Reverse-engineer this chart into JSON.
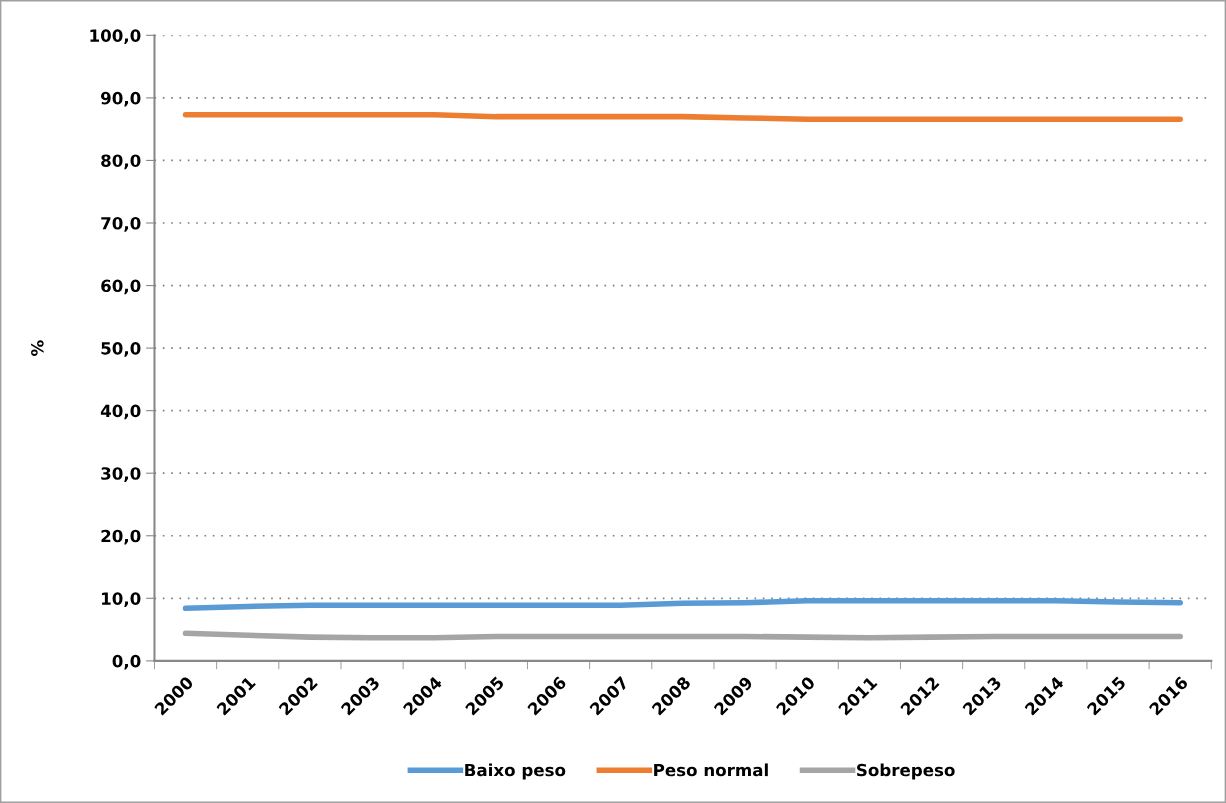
{
  "chart_data": {
    "type": "line",
    "ylabel": "%",
    "categories": [
      "2000",
      "2001",
      "2002",
      "2003",
      "2004",
      "2005",
      "2006",
      "2007",
      "2008",
      "2009",
      "2010",
      "2011",
      "2012",
      "2013",
      "2014",
      "2015",
      "2016"
    ],
    "series": [
      {
        "name": "Baixo peso",
        "color": "#5b9bd5",
        "values": [
          8.4,
          8.7,
          8.9,
          8.9,
          8.9,
          8.9,
          8.9,
          8.9,
          9.2,
          9.3,
          9.6,
          9.6,
          9.6,
          9.6,
          9.6,
          9.4,
          9.3
        ]
      },
      {
        "name": "Peso normal",
        "color": "#ed7d31",
        "values": [
          87.3,
          87.3,
          87.3,
          87.3,
          87.3,
          87.0,
          87.0,
          87.0,
          87.0,
          86.8,
          86.6,
          86.6,
          86.6,
          86.6,
          86.6,
          86.6,
          86.6
        ]
      },
      {
        "name": "Sobrepeso",
        "color": "#a5a5a5",
        "values": [
          4.4,
          4.1,
          3.8,
          3.7,
          3.7,
          3.9,
          3.9,
          3.9,
          3.9,
          3.9,
          3.8,
          3.7,
          3.8,
          3.9,
          3.9,
          3.9,
          3.9
        ]
      }
    ],
    "ylim": [
      0,
      100
    ],
    "yticks": [
      {
        "value": 0,
        "label": "0,0"
      },
      {
        "value": 10,
        "label": "10,0"
      },
      {
        "value": 20,
        "label": "20,0"
      },
      {
        "value": 30,
        "label": "30,0"
      },
      {
        "value": 40,
        "label": "40,0"
      },
      {
        "value": 50,
        "label": "50,0"
      },
      {
        "value": 60,
        "label": "60,0"
      },
      {
        "value": 70,
        "label": "70,0"
      },
      {
        "value": 80,
        "label": "80,0"
      },
      {
        "value": 90,
        "label": "90,0"
      },
      {
        "value": 100,
        "label": "100,0"
      }
    ],
    "grid": "y",
    "legend": "bottom",
    "marker": "none",
    "line_style": "solid"
  }
}
